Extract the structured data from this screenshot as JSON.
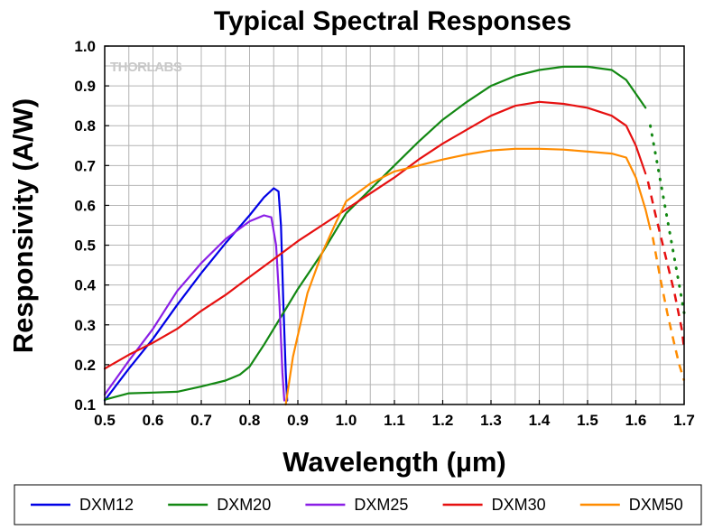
{
  "chart_data": {
    "type": "line",
    "title": "Typical Spectral Responses",
    "xlabel": "Wavelength (µm)",
    "ylabel": "Responsivity (A/W)",
    "xlim": [
      0.5,
      1.7
    ],
    "ylim": [
      0.1,
      1.0
    ],
    "grid": true,
    "legend_position": "bottom",
    "watermark": "THORLABS",
    "x_ticks": [
      "0.5",
      "0.6",
      "0.7",
      "0.8",
      "0.9",
      "1.0",
      "1.1",
      "1.2",
      "1.3",
      "1.4",
      "1.5",
      "1.6",
      "1.7"
    ],
    "y_ticks": [
      "0.1",
      "0.2",
      "0.3",
      "0.4",
      "0.5",
      "0.6",
      "0.7",
      "0.8",
      "0.9",
      "1.0"
    ],
    "series": [
      {
        "name": "DXM12",
        "color": "#0000e6",
        "points": [
          [
            0.5,
            0.11
          ],
          [
            0.55,
            0.19
          ],
          [
            0.6,
            0.265
          ],
          [
            0.65,
            0.35
          ],
          [
            0.7,
            0.43
          ],
          [
            0.75,
            0.505
          ],
          [
            0.8,
            0.575
          ],
          [
            0.83,
            0.62
          ],
          [
            0.85,
            0.643
          ],
          [
            0.86,
            0.635
          ],
          [
            0.865,
            0.55
          ],
          [
            0.87,
            0.35
          ],
          [
            0.875,
            0.18
          ],
          [
            0.878,
            0.11
          ]
        ]
      },
      {
        "name": "DXM20",
        "color": "#138813",
        "points": [
          [
            0.5,
            0.112
          ],
          [
            0.55,
            0.128
          ],
          [
            0.6,
            0.13
          ],
          [
            0.65,
            0.132
          ],
          [
            0.7,
            0.145
          ],
          [
            0.75,
            0.16
          ],
          [
            0.78,
            0.175
          ],
          [
            0.8,
            0.195
          ],
          [
            0.83,
            0.25
          ],
          [
            0.87,
            0.33
          ],
          [
            0.9,
            0.39
          ],
          [
            0.95,
            0.48
          ],
          [
            1.0,
            0.58
          ],
          [
            1.05,
            0.64
          ],
          [
            1.1,
            0.7
          ],
          [
            1.15,
            0.76
          ],
          [
            1.2,
            0.815
          ],
          [
            1.25,
            0.86
          ],
          [
            1.3,
            0.9
          ],
          [
            1.35,
            0.925
          ],
          [
            1.4,
            0.94
          ],
          [
            1.45,
            0.948
          ],
          [
            1.5,
            0.948
          ],
          [
            1.55,
            0.94
          ],
          [
            1.58,
            0.915
          ],
          [
            1.6,
            0.88
          ],
          [
            1.62,
            0.845
          ]
        ],
        "dotted_points": [
          [
            1.63,
            0.8
          ],
          [
            1.645,
            0.7
          ],
          [
            1.66,
            0.6
          ],
          [
            1.675,
            0.5
          ],
          [
            1.69,
            0.4
          ],
          [
            1.7,
            0.33
          ]
        ]
      },
      {
        "name": "DXM25",
        "color": "#8a1ee6",
        "points": [
          [
            0.5,
            0.125
          ],
          [
            0.55,
            0.21
          ],
          [
            0.6,
            0.29
          ],
          [
            0.65,
            0.385
          ],
          [
            0.7,
            0.455
          ],
          [
            0.75,
            0.515
          ],
          [
            0.8,
            0.56
          ],
          [
            0.83,
            0.575
          ],
          [
            0.845,
            0.57
          ],
          [
            0.855,
            0.5
          ],
          [
            0.862,
            0.35
          ],
          [
            0.868,
            0.18
          ],
          [
            0.872,
            0.11
          ]
        ]
      },
      {
        "name": "DXM30",
        "color": "#e61010",
        "points": [
          [
            0.5,
            0.19
          ],
          [
            0.55,
            0.225
          ],
          [
            0.6,
            0.255
          ],
          [
            0.65,
            0.29
          ],
          [
            0.7,
            0.335
          ],
          [
            0.75,
            0.375
          ],
          [
            0.8,
            0.42
          ],
          [
            0.85,
            0.465
          ],
          [
            0.9,
            0.51
          ],
          [
            0.95,
            0.55
          ],
          [
            1.0,
            0.59
          ],
          [
            1.05,
            0.63
          ],
          [
            1.1,
            0.67
          ],
          [
            1.15,
            0.715
          ],
          [
            1.2,
            0.755
          ],
          [
            1.25,
            0.79
          ],
          [
            1.3,
            0.825
          ],
          [
            1.35,
            0.85
          ],
          [
            1.4,
            0.86
          ],
          [
            1.45,
            0.855
          ],
          [
            1.5,
            0.845
          ],
          [
            1.55,
            0.825
          ],
          [
            1.58,
            0.8
          ],
          [
            1.6,
            0.75
          ],
          [
            1.62,
            0.68
          ]
        ],
        "dashed_points": [
          [
            1.625,
            0.66
          ],
          [
            1.64,
            0.58
          ],
          [
            1.66,
            0.48
          ],
          [
            1.68,
            0.38
          ],
          [
            1.695,
            0.29
          ],
          [
            1.7,
            0.24
          ]
        ]
      },
      {
        "name": "DXM50",
        "color": "#ff8c00",
        "points": [
          [
            0.875,
            0.1
          ],
          [
            0.89,
            0.22
          ],
          [
            0.92,
            0.38
          ],
          [
            0.95,
            0.48
          ],
          [
            0.98,
            0.56
          ],
          [
            1.0,
            0.61
          ],
          [
            1.05,
            0.655
          ],
          [
            1.1,
            0.685
          ],
          [
            1.15,
            0.7
          ],
          [
            1.2,
            0.715
          ],
          [
            1.25,
            0.728
          ],
          [
            1.3,
            0.738
          ],
          [
            1.35,
            0.742
          ],
          [
            1.4,
            0.742
          ],
          [
            1.45,
            0.74
          ],
          [
            1.5,
            0.735
          ],
          [
            1.55,
            0.73
          ],
          [
            1.58,
            0.72
          ],
          [
            1.6,
            0.67
          ],
          [
            1.62,
            0.59
          ],
          [
            1.63,
            0.54
          ]
        ],
        "dashed_points": [
          [
            1.635,
            0.52
          ],
          [
            1.65,
            0.42
          ],
          [
            1.665,
            0.33
          ],
          [
            1.68,
            0.25
          ],
          [
            1.69,
            0.2
          ],
          [
            1.7,
            0.16
          ]
        ]
      }
    ]
  }
}
